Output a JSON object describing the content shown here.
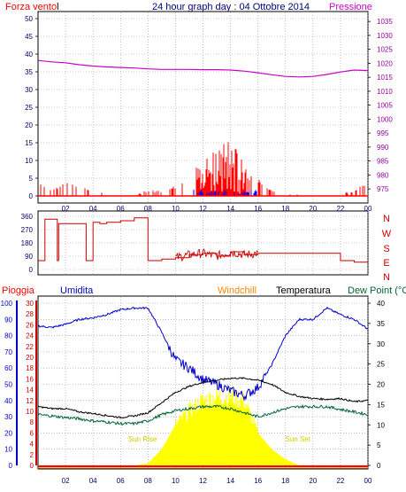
{
  "header": {
    "left_label": "Forza vento",
    "left_unit": "l",
    "title": "24 hour graph day : 04 Ottobre 2014",
    "right_label": "Pressione"
  },
  "colors": {
    "wind": "#ff0000",
    "gust_blue": "#0000ff",
    "pressure": "#cc00cc",
    "direction": "#cc0000",
    "humidity": "#0000cc",
    "temperature": "#000000",
    "dewpoint": "#006633",
    "solar": "#ffff00",
    "rain": "#ff0000",
    "windchill": "#ff8800",
    "grid": "#999999",
    "axis_text_left": "#000066",
    "axis_text_right": "#990099"
  },
  "bottom_legend": {
    "rain": "Pioggia",
    "humidity": "Umidita",
    "windchill": "Windchill",
    "temperature": "Temperatura",
    "dewpoint": "Dew Point (°C"
  },
  "x_tick_labels": [
    "02",
    "04",
    "06",
    "08",
    "10",
    "12",
    "14",
    "16",
    "18",
    "20",
    "22",
    "00"
  ],
  "chart_data": [
    {
      "type": "line",
      "name": "wind-pressure",
      "xlabel": "",
      "x_hours": [
        0,
        1,
        2,
        3,
        4,
        5,
        6,
        7,
        8,
        9,
        10,
        11,
        12,
        13,
        14,
        15,
        16,
        17,
        18,
        19,
        20,
        21,
        22,
        23,
        24
      ],
      "series": [
        {
          "key": "pressure",
          "axis": "right",
          "values": [
            1021,
            1020.5,
            1020.2,
            1019.5,
            1019,
            1018.7,
            1018.5,
            1018.3,
            1018,
            1017.8,
            1017.8,
            1017.8,
            1017.7,
            1017.7,
            1017.6,
            1017.2,
            1016.6,
            1015.9,
            1015.3,
            1015.1,
            1015.3,
            1016,
            1016.9,
            1017.6,
            1017.4
          ]
        },
        {
          "key": "wind",
          "axis": "left",
          "values": [
            3,
            1,
            3,
            2,
            1,
            0,
            0,
            0,
            1,
            1,
            2,
            4,
            6,
            7,
            8,
            6,
            4,
            1,
            0,
            0,
            0,
            0,
            0,
            1,
            3
          ]
        }
      ],
      "y_left_ticks": [
        0,
        5,
        10,
        15,
        20,
        25,
        30,
        35,
        40,
        45,
        50
      ],
      "y_left_lim": [
        0,
        50
      ],
      "y_right_ticks": [
        975,
        980,
        985,
        990,
        995,
        1000,
        1005,
        1010,
        1015,
        1020,
        1025,
        1030,
        1035
      ],
      "y_right_lim": [
        972.5,
        1036
      ]
    },
    {
      "type": "line",
      "name": "wind-direction",
      "x_hours": [
        0,
        0.5,
        1,
        1.4,
        1.5,
        2,
        3,
        3.5,
        4,
        4.5,
        5,
        6,
        7,
        7.5,
        8,
        9,
        10,
        11,
        12,
        13,
        14,
        15,
        16,
        17,
        18,
        19,
        20,
        21,
        22,
        23,
        24
      ],
      "series": [
        {
          "key": "direction",
          "values": [
            60,
            340,
            340,
            60,
            310,
            310,
            310,
            60,
            320,
            310,
            320,
            330,
            350,
            350,
            60,
            70,
            80,
            100,
            110,
            90,
            120,
            100,
            110,
            110,
            110,
            110,
            110,
            110,
            60,
            50,
            50
          ]
        }
      ],
      "y_ticks": [
        0,
        90,
        180,
        270,
        360
      ],
      "y_lim": [
        0,
        360
      ],
      "compass_labels": [
        "N",
        "W",
        "S",
        "E",
        "N"
      ]
    },
    {
      "type": "line",
      "name": "temp-humidity",
      "x_hours": [
        0,
        1,
        2,
        3,
        4,
        5,
        6,
        7,
        8,
        9,
        10,
        11,
        12,
        13,
        14,
        15,
        16,
        17,
        18,
        19,
        20,
        21,
        22,
        23,
        24
      ],
      "series": [
        {
          "key": "humidity",
          "axis": "humidity",
          "values": [
            86,
            85,
            87,
            90,
            91,
            93,
            96,
            97,
            97,
            82,
            65,
            60,
            53,
            50,
            46,
            43,
            48,
            62,
            80,
            90,
            90,
            97,
            93,
            90,
            84
          ]
        },
        {
          "key": "temperature",
          "axis": "temp",
          "values": [
            14.5,
            14,
            14,
            13.2,
            12.8,
            12.3,
            11.8,
            12.2,
            13,
            15.5,
            18,
            19.5,
            20.5,
            21,
            21.5,
            21.5,
            21,
            20,
            18,
            17,
            16.5,
            16.3,
            16.5,
            15.7,
            16
          ]
        },
        {
          "key": "dewpoint",
          "axis": "temp",
          "values": [
            12.5,
            12.2,
            11.8,
            11.5,
            11,
            10.7,
            10.3,
            10.3,
            11,
            12.5,
            13.5,
            14,
            14.5,
            14.5,
            14,
            13,
            12,
            13,
            14,
            14.5,
            14.5,
            14.5,
            13.8,
            13.2,
            12.5
          ]
        },
        {
          "key": "solar",
          "axis": "temp",
          "values": [
            0,
            0,
            0,
            0,
            0,
            0,
            0,
            0,
            0.5,
            4,
            10,
            13.5,
            16,
            17,
            17,
            16,
            8,
            4,
            1.5,
            0,
            0,
            0,
            0,
            0,
            0
          ]
        }
      ],
      "y_humidity_ticks": [
        0,
        10,
        20,
        30,
        40,
        50,
        60,
        70,
        80,
        90,
        100
      ],
      "y_rain_ticks": [
        0,
        2,
        4,
        6,
        8,
        10,
        12,
        14,
        16,
        18,
        20,
        22,
        24,
        26,
        28,
        30
      ],
      "y_temp_ticks": [
        0,
        5,
        10,
        15,
        20,
        25,
        30,
        35,
        40
      ],
      "y_temp_lim": [
        0,
        40
      ],
      "annotations": [
        "Sun Rise",
        "Sun Set"
      ]
    }
  ]
}
